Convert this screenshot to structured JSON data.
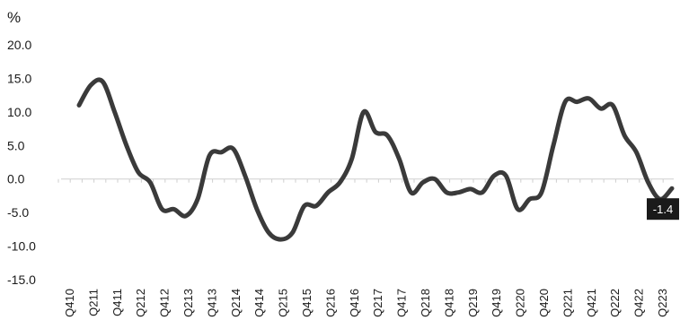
{
  "chart_data": {
    "type": "line",
    "ylabel": "%",
    "ylim": [
      -15,
      20
    ],
    "yticks": [
      "20.0",
      "15.0",
      "10.0",
      "5.0",
      "0.0",
      "-5.0",
      "-10.0",
      "-15.0"
    ],
    "xtick_labels": [
      "Q410",
      "Q211",
      "Q411",
      "Q212",
      "Q412",
      "Q213",
      "Q413",
      "Q214",
      "Q414",
      "Q215",
      "Q415",
      "Q216",
      "Q416",
      "Q217",
      "Q417",
      "Q218",
      "Q418",
      "Q219",
      "Q419",
      "Q220",
      "Q420",
      "Q221",
      "Q421",
      "Q222",
      "Q422",
      "Q223"
    ],
    "series": [
      {
        "color": "#3a3a3a",
        "values": [
          11.0,
          14.0,
          14.5,
          10.0,
          5.0,
          1.0,
          -0.5,
          -4.5,
          -4.5,
          -5.5,
          -3.0,
          3.5,
          4.0,
          4.5,
          0.5,
          -4.5,
          -8.0,
          -9.0,
          -8.0,
          -4.0,
          -4.0,
          -2.0,
          -0.5,
          3.0,
          10.0,
          7.0,
          6.5,
          3.0,
          -2.0,
          -0.5,
          0.0,
          -2.0,
          -2.0,
          -1.5,
          -2.0,
          0.5,
          0.5,
          -4.5,
          -3.0,
          -2.0,
          5.0,
          11.5,
          11.5,
          12.0,
          10.5,
          11.0,
          6.5,
          4.0,
          -0.5,
          -3.0,
          -1.4
        ]
      }
    ],
    "end_label": "-1.4",
    "end_label_bg": "#1a1a1a",
    "zero_line_color": "#cfcfcf"
  }
}
